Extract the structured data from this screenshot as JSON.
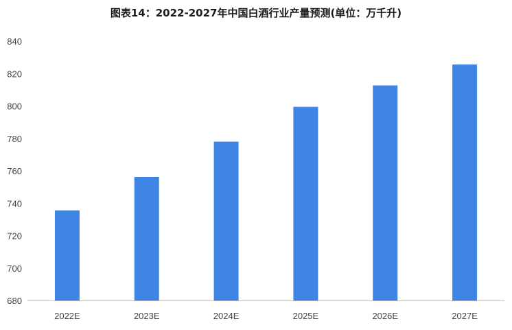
{
  "title": "图表14：2022-2027年中国白酒行业产量预测(单位：万千升)",
  "colors": {
    "bar": "#3f85e3",
    "axis": "#bdbdbd",
    "tick_text": "#444444"
  },
  "chart_data": {
    "type": "bar",
    "title": "图表14：2022-2027年中国白酒行业产量预测(单位：万千升)",
    "categories": [
      "2022E",
      "2023E",
      "2024E",
      "2025E",
      "2026E",
      "2027E"
    ],
    "values": [
      735.6,
      756.2,
      778.0,
      799.5,
      812.7,
      825.6
    ],
    "ylim": [
      680,
      840
    ],
    "yticks": [
      680,
      700,
      720,
      740,
      760,
      780,
      800,
      820,
      840
    ],
    "xlabel": "",
    "ylabel": "",
    "grid": false,
    "legend": "none"
  }
}
